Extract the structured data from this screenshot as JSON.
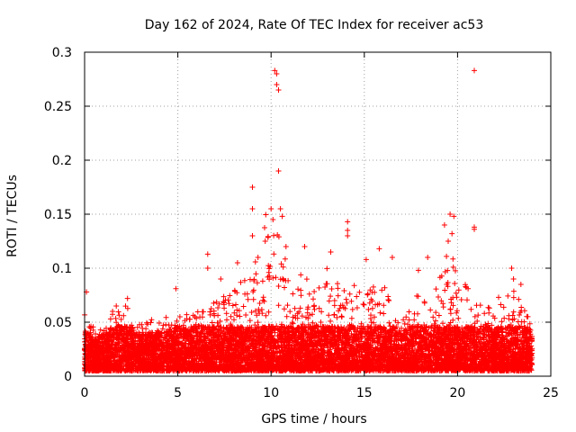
{
  "chart_data": {
    "type": "scatter",
    "title": "Day 162 of 2024, Rate Of TEC Index for receiver ac53",
    "xlabel": "GPS time / hours",
    "ylabel": "ROTI / TECUs",
    "xlim": [
      0,
      25
    ],
    "ylim": [
      0,
      0.3
    ],
    "x_ticks": [
      0,
      5,
      10,
      15,
      20,
      25
    ],
    "x_tick_labels": [
      "0",
      "5",
      "10",
      "15",
      "20",
      "25"
    ],
    "y_ticks": [
      0,
      0.05,
      0.1,
      0.15,
      0.2,
      0.25,
      0.3
    ],
    "y_tick_labels": [
      "0",
      "0.05",
      "0.1",
      "0.15",
      "0.2",
      "0.25",
      "0.3"
    ],
    "grid": true,
    "marker": "+",
    "series": [
      {
        "name": "ROTI",
        "color": "#ff0000",
        "x_range": [
          0,
          24
        ],
        "typical_y_range": [
          0.005,
          0.06
        ],
        "envelope": [
          {
            "x": 0.0,
            "y": 0.06
          },
          {
            "x": 0.5,
            "y": 0.045
          },
          {
            "x": 1.0,
            "y": 0.05
          },
          {
            "x": 2.0,
            "y": 0.07
          },
          {
            "x": 3.0,
            "y": 0.05
          },
          {
            "x": 4.0,
            "y": 0.055
          },
          {
            "x": 5.0,
            "y": 0.06
          },
          {
            "x": 6.0,
            "y": 0.06
          },
          {
            "x": 7.0,
            "y": 0.07
          },
          {
            "x": 8.0,
            "y": 0.08
          },
          {
            "x": 9.0,
            "y": 0.1
          },
          {
            "x": 9.5,
            "y": 0.15
          },
          {
            "x": 10.0,
            "y": 0.15
          },
          {
            "x": 10.5,
            "y": 0.15
          },
          {
            "x": 11.0,
            "y": 0.1
          },
          {
            "x": 12.0,
            "y": 0.09
          },
          {
            "x": 13.0,
            "y": 0.1
          },
          {
            "x": 14.0,
            "y": 0.09
          },
          {
            "x": 15.0,
            "y": 0.08
          },
          {
            "x": 16.0,
            "y": 0.09
          },
          {
            "x": 17.0,
            "y": 0.05
          },
          {
            "x": 18.0,
            "y": 0.08
          },
          {
            "x": 19.0,
            "y": 0.09
          },
          {
            "x": 19.5,
            "y": 0.12
          },
          {
            "x": 20.0,
            "y": 0.1
          },
          {
            "x": 21.0,
            "y": 0.07
          },
          {
            "x": 22.0,
            "y": 0.065
          },
          {
            "x": 23.0,
            "y": 0.08
          },
          {
            "x": 24.0,
            "y": 0.05
          }
        ],
        "notable_points": [
          {
            "x": 0.1,
            "y": 0.078
          },
          {
            "x": 1.7,
            "y": 0.065
          },
          {
            "x": 2.3,
            "y": 0.072
          },
          {
            "x": 4.9,
            "y": 0.081
          },
          {
            "x": 6.6,
            "y": 0.113
          },
          {
            "x": 6.6,
            "y": 0.1
          },
          {
            "x": 7.3,
            "y": 0.09
          },
          {
            "x": 8.2,
            "y": 0.105
          },
          {
            "x": 9.0,
            "y": 0.175
          },
          {
            "x": 9.0,
            "y": 0.155
          },
          {
            "x": 9.0,
            "y": 0.13
          },
          {
            "x": 9.3,
            "y": 0.11
          },
          {
            "x": 10.2,
            "y": 0.283
          },
          {
            "x": 10.3,
            "y": 0.28
          },
          {
            "x": 10.3,
            "y": 0.27
          },
          {
            "x": 10.4,
            "y": 0.265
          },
          {
            "x": 10.4,
            "y": 0.19
          },
          {
            "x": 10.0,
            "y": 0.155
          },
          {
            "x": 10.1,
            "y": 0.145
          },
          {
            "x": 10.5,
            "y": 0.155
          },
          {
            "x": 10.6,
            "y": 0.148
          },
          {
            "x": 10.8,
            "y": 0.12
          },
          {
            "x": 11.8,
            "y": 0.12
          },
          {
            "x": 13.2,
            "y": 0.115
          },
          {
            "x": 14.1,
            "y": 0.143
          },
          {
            "x": 14.1,
            "y": 0.135
          },
          {
            "x": 14.1,
            "y": 0.13
          },
          {
            "x": 15.1,
            "y": 0.108
          },
          {
            "x": 15.8,
            "y": 0.118
          },
          {
            "x": 16.5,
            "y": 0.11
          },
          {
            "x": 17.9,
            "y": 0.098
          },
          {
            "x": 18.4,
            "y": 0.11
          },
          {
            "x": 19.3,
            "y": 0.14
          },
          {
            "x": 19.5,
            "y": 0.125
          },
          {
            "x": 19.6,
            "y": 0.15
          },
          {
            "x": 19.8,
            "y": 0.148
          },
          {
            "x": 19.7,
            "y": 0.132
          },
          {
            "x": 20.9,
            "y": 0.283
          },
          {
            "x": 20.9,
            "y": 0.138
          },
          {
            "x": 20.9,
            "y": 0.136
          },
          {
            "x": 22.2,
            "y": 0.073
          },
          {
            "x": 22.9,
            "y": 0.1
          },
          {
            "x": 23.0,
            "y": 0.09
          },
          {
            "x": 23.4,
            "y": 0.085
          }
        ]
      }
    ]
  }
}
